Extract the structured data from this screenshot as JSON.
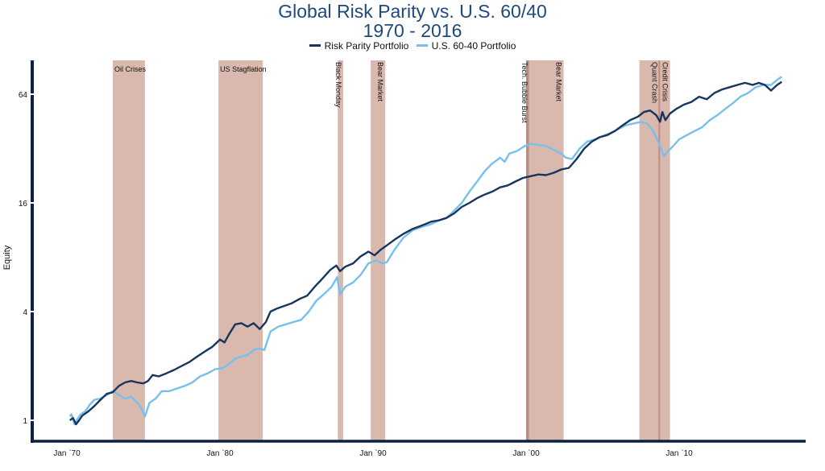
{
  "chart_data": {
    "type": "line",
    "title": "Global Risk Parity vs. U.S. 60/40",
    "subtitle": "1970 - 2016",
    "xlabel": "",
    "ylabel": "Equity",
    "yscale": "log2",
    "ylim": [
      0.85,
      80
    ],
    "xlim": [
      1968.0,
      2019.9
    ],
    "yticks": [
      {
        "value": 1,
        "label": "1"
      },
      {
        "value": 4,
        "label": "4"
      },
      {
        "value": 16,
        "label": "16"
      },
      {
        "value": 64,
        "label": "64"
      }
    ],
    "xticks": [
      {
        "value": 1970.0,
        "label": "Jan `70"
      },
      {
        "value": 1980.0,
        "label": "Jan `80"
      },
      {
        "value": 1990.0,
        "label": "Jan `90"
      },
      {
        "value": 2000.0,
        "label": "Jan `00"
      },
      {
        "value": 2010.0,
        "label": "Jan `10"
      }
    ],
    "grid": false,
    "legend_position": "top-center",
    "colors": {
      "risk_parity": "#17365d",
      "sixty_forty": "#78c0ec",
      "band": "#d9b8ae",
      "band_line": "#c08a80",
      "axis": "#0b2341",
      "title": "#1f497d"
    },
    "shaded_periods": [
      {
        "label": "Oil Crises",
        "start": 1973.0,
        "end": 1975.1,
        "orientation": "horizontal"
      },
      {
        "label": "US Stagflation",
        "start": 1979.9,
        "end": 1982.8,
        "orientation": "horizontal"
      },
      {
        "label": "Black Monday",
        "start": 1987.7,
        "end": 1988.05,
        "orientation": "vertical"
      },
      {
        "label": "Bear Market",
        "start": 1989.85,
        "end": 1990.8,
        "orientation": "vertical"
      },
      {
        "label": "Tech. Bubble Burst",
        "start": 2000.0,
        "end": 2000.2,
        "orientation": "vertical",
        "emphasis": true
      },
      {
        "label": "Bear Market",
        "start": 2000.2,
        "end": 2002.45,
        "orientation": "vertical"
      },
      {
        "label": "Quant Crash",
        "start": 2007.4,
        "end": 2008.7,
        "orientation": "vertical"
      },
      {
        "label": "Credit Crisis",
        "start": 2008.7,
        "end": 2009.4,
        "orientation": "vertical"
      },
      {
        "label": "",
        "start": 2008.65,
        "end": 2008.75,
        "orientation": "none",
        "emphasis": true
      }
    ],
    "series": [
      {
        "name": "Risk Parity Portfolio",
        "x": [
          1970.2,
          1970.4,
          1970.6,
          1970.8,
          1971.0,
          1971.4,
          1971.8,
          1972.2,
          1972.6,
          1973.0,
          1973.4,
          1973.8,
          1974.2,
          1974.6,
          1975.0,
          1975.3,
          1975.6,
          1976.0,
          1976.5,
          1977.0,
          1977.5,
          1978.0,
          1978.5,
          1979.0,
          1979.5,
          1980.0,
          1980.3,
          1980.6,
          1981.0,
          1981.4,
          1981.8,
          1982.2,
          1982.6,
          1983.0,
          1983.3,
          1983.7,
          1984.2,
          1984.7,
          1985.2,
          1985.7,
          1986.2,
          1986.7,
          1987.2,
          1987.6,
          1987.85,
          1988.2,
          1988.7,
          1989.2,
          1989.7,
          1990.1,
          1990.5,
          1990.9,
          1991.4,
          1992.0,
          1992.6,
          1993.2,
          1993.8,
          1994.3,
          1994.8,
          1995.3,
          1995.8,
          1996.3,
          1996.8,
          1997.3,
          1997.8,
          1998.3,
          1998.8,
          1999.3,
          1999.8,
          2000.3,
          2000.8,
          2001.3,
          2001.8,
          2002.3,
          2002.8,
          2003.3,
          2003.8,
          2004.3,
          2004.8,
          2005.3,
          2005.8,
          2006.3,
          2006.8,
          2007.3,
          2007.7,
          2008.1,
          2008.5,
          2008.75,
          2008.9,
          2009.1,
          2009.4,
          2009.8,
          2010.3,
          2010.8,
          2011.3,
          2011.8,
          2012.3,
          2012.8,
          2013.3,
          2013.8,
          2014.3,
          2014.8,
          2015.2,
          2015.6,
          2016.0,
          2016.4,
          2016.7
        ],
        "values": [
          1.0,
          1.03,
          0.95,
          1.0,
          1.06,
          1.12,
          1.2,
          1.3,
          1.4,
          1.43,
          1.55,
          1.62,
          1.65,
          1.62,
          1.6,
          1.65,
          1.78,
          1.75,
          1.82,
          1.9,
          2.0,
          2.1,
          2.25,
          2.4,
          2.55,
          2.8,
          2.7,
          3.0,
          3.4,
          3.45,
          3.3,
          3.45,
          3.2,
          3.5,
          4.0,
          4.15,
          4.3,
          4.45,
          4.7,
          4.9,
          5.5,
          6.1,
          6.8,
          7.2,
          6.7,
          7.1,
          7.4,
          8.1,
          8.6,
          8.2,
          8.8,
          9.3,
          10.0,
          10.8,
          11.5,
          12.0,
          12.6,
          12.8,
          13.2,
          14.0,
          15.2,
          16.0,
          17.0,
          17.8,
          18.5,
          19.5,
          20.0,
          21.0,
          22.0,
          22.5,
          23.0,
          22.8,
          23.5,
          24.5,
          25.0,
          28.0,
          32.0,
          35.0,
          37.0,
          38.0,
          40.0,
          43.0,
          46.0,
          48.0,
          51.0,
          52.0,
          49.0,
          45.0,
          51.0,
          46.0,
          50.0,
          53.0,
          56.0,
          58.0,
          62.0,
          60.0,
          65.0,
          68.0,
          70.0,
          72.0,
          74.0,
          72.0,
          74.0,
          72.0,
          67.0,
          72.0,
          75.0
        ]
      },
      {
        "name": "U.S. 60-40 Portfolio",
        "x": [
          1970.2,
          1970.3,
          1970.5,
          1970.7,
          1970.9,
          1971.2,
          1971.5,
          1971.8,
          1972.2,
          1972.6,
          1973.0,
          1973.4,
          1973.8,
          1974.2,
          1974.6,
          1974.9,
          1975.1,
          1975.4,
          1975.8,
          1976.2,
          1976.7,
          1977.2,
          1977.7,
          1978.2,
          1978.7,
          1979.2,
          1979.7,
          1980.2,
          1980.6,
          1981.0,
          1981.4,
          1981.8,
          1982.2,
          1982.6,
          1982.9,
          1983.3,
          1983.8,
          1984.3,
          1984.8,
          1985.3,
          1985.8,
          1986.3,
          1986.8,
          1987.3,
          1987.65,
          1987.85,
          1988.2,
          1988.7,
          1989.2,
          1989.7,
          1990.2,
          1990.6,
          1990.9,
          1991.4,
          1992.0,
          1992.6,
          1993.2,
          1993.8,
          1994.3,
          1994.8,
          1995.3,
          1995.8,
          1996.3,
          1996.8,
          1997.3,
          1997.8,
          1998.3,
          1998.6,
          1998.9,
          1999.4,
          1999.9,
          2000.3,
          2000.8,
          2001.3,
          2001.8,
          2002.3,
          2002.6,
          2003.0,
          2003.5,
          2004.0,
          2004.5,
          2005.0,
          2005.5,
          2006.0,
          2006.5,
          2007.0,
          2007.5,
          2007.9,
          2008.3,
          2008.7,
          2009.0,
          2009.2,
          2009.6,
          2010.0,
          2010.5,
          2011.0,
          2011.5,
          2012.0,
          2012.5,
          2013.0,
          2013.5,
          2014.0,
          2014.5,
          2015.0,
          2015.5,
          2016.0,
          2016.5,
          2016.7
        ],
        "values": [
          1.05,
          1.08,
          0.95,
          1.02,
          1.08,
          1.12,
          1.22,
          1.3,
          1.32,
          1.38,
          1.45,
          1.38,
          1.32,
          1.35,
          1.25,
          1.15,
          1.05,
          1.25,
          1.32,
          1.45,
          1.45,
          1.5,
          1.55,
          1.62,
          1.75,
          1.82,
          1.92,
          1.95,
          2.05,
          2.2,
          2.25,
          2.3,
          2.45,
          2.5,
          2.45,
          3.1,
          3.3,
          3.4,
          3.5,
          3.6,
          4.0,
          4.6,
          5.0,
          5.5,
          6.2,
          5.0,
          5.5,
          5.8,
          6.4,
          7.4,
          7.7,
          7.4,
          7.5,
          8.8,
          10.3,
          11.3,
          11.8,
          12.2,
          12.8,
          13.2,
          14.5,
          16.0,
          18.5,
          21.0,
          24.0,
          26.5,
          28.5,
          27.0,
          30.0,
          31.0,
          33.0,
          34.0,
          33.5,
          33.0,
          31.5,
          30.0,
          28.5,
          28.0,
          32.0,
          35.0,
          36.0,
          37.5,
          39.0,
          41.0,
          43.0,
          44.0,
          45.0,
          44.0,
          40.0,
          34.0,
          29.0,
          30.5,
          33.0,
          36.0,
          38.0,
          40.0,
          42.0,
          46.0,
          49.0,
          53.0,
          57.0,
          62.0,
          65.0,
          70.0,
          72.0,
          72.0,
          78.0,
          80.0
        ]
      }
    ]
  }
}
